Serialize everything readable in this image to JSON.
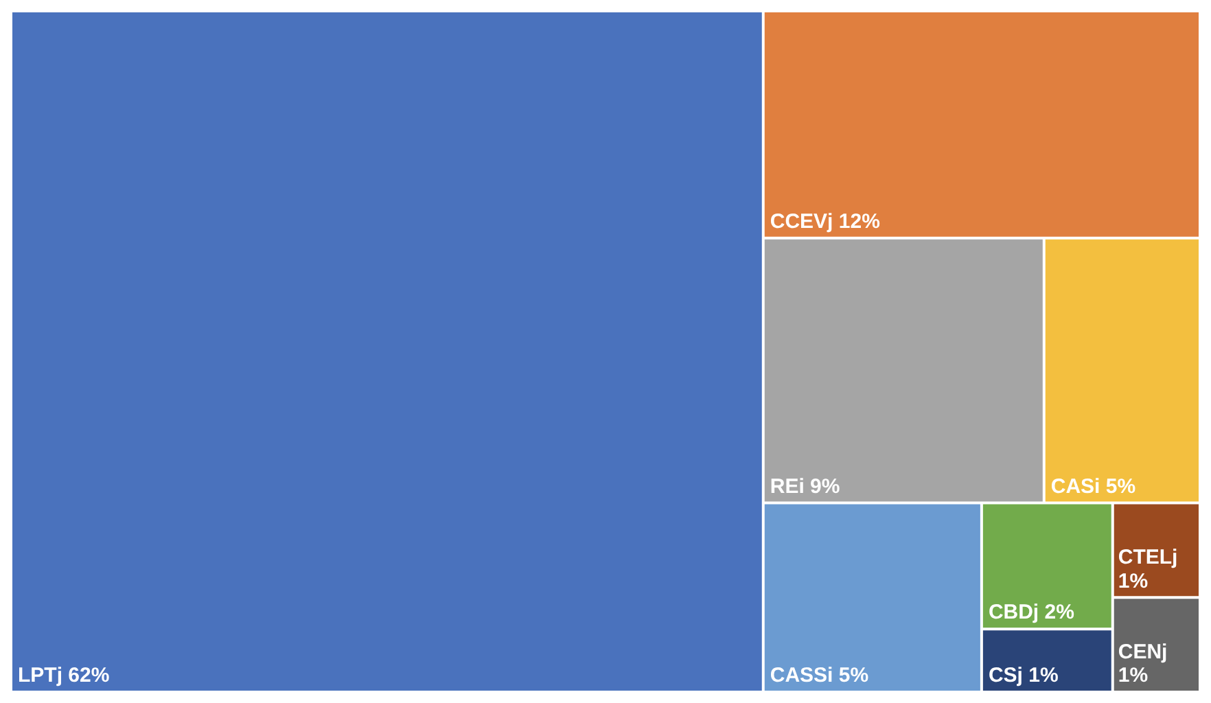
{
  "chart_data": {
    "type": "other",
    "categories": [
      "LPTj",
      "CCEVj",
      "REi",
      "CASi",
      "CASSi",
      "CBDj",
      "CSj",
      "CTELj",
      "CENj"
    ],
    "values": [
      62,
      12,
      9,
      5,
      5,
      2,
      1,
      1,
      1
    ],
    "value_labels": [
      "62%",
      "12%",
      "9%",
      "5%",
      "5%",
      "2%",
      "1%",
      "1%",
      "1%"
    ],
    "colors": [
      "#4a72bd",
      "#e07f3f",
      "#a5a5a5",
      "#f3bf3f",
      "#6b9bd1",
      "#72ab4b",
      "#2a4478",
      "#9b4a1f",
      "#666666"
    ]
  }
}
